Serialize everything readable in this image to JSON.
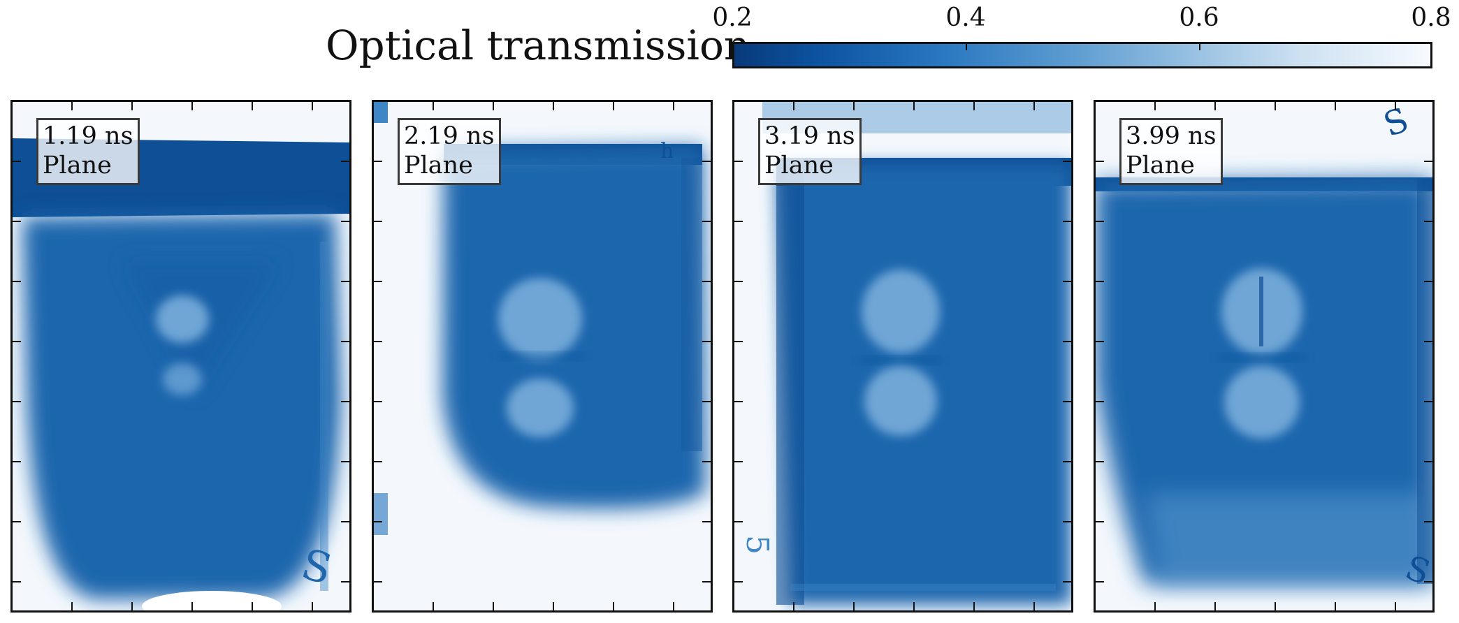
{
  "colorbar": {
    "label": "Optical transmission",
    "ticks": [
      "0.2",
      "0.4",
      "0.6",
      "0.8"
    ],
    "range": [
      0.2,
      0.8
    ],
    "colormap": [
      "#083a7a",
      "#2a78c0",
      "#98c1e2",
      "#f6faff"
    ]
  },
  "panels": [
    {
      "time": "1.19 ns",
      "plane": "Plane"
    },
    {
      "time": "2.19 ns",
      "plane": "Plane"
    },
    {
      "time": "3.19 ns",
      "plane": "Plane"
    },
    {
      "time": "3.99 ns",
      "plane": "Plane"
    }
  ],
  "colors": {
    "background": "#f4f8fd",
    "shadow": "#1f66ad",
    "dark": "#0e4f95"
  }
}
